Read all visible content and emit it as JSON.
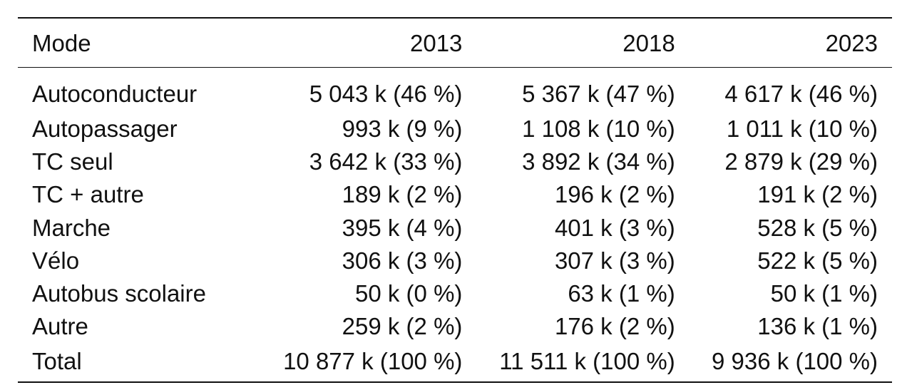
{
  "table": {
    "headers": [
      "Mode",
      "2013",
      "2018",
      "2023"
    ],
    "rows": [
      [
        "Autoconducteur",
        "5 043 k (46 %)",
        "5 367 k (47 %)",
        "4 617 k (46 %)"
      ],
      [
        "Autopassager",
        "993 k (9 %)",
        "1 108 k (10 %)",
        "1 011 k (10 %)"
      ],
      [
        "TC seul",
        "3 642 k (33 %)",
        "3 892 k (34 %)",
        "2 879 k (29 %)"
      ],
      [
        "TC + autre",
        "189 k (2 %)",
        "196 k (2 %)",
        "191 k (2 %)"
      ],
      [
        "Marche",
        "395 k (4 %)",
        "401 k (3 %)",
        "528 k (5 %)"
      ],
      [
        "Vélo",
        "306 k (3 %)",
        "307 k (3 %)",
        "522 k (5 %)"
      ],
      [
        "Autobus scolaire",
        "50 k (0 %)",
        "63 k (1 %)",
        "50 k (1 %)"
      ],
      [
        "Autre",
        "259 k (2 %)",
        "176 k (2 %)",
        "136 k (1 %)"
      ],
      [
        "Total",
        "10 877 k (100 %)",
        "11 511 k (100 %)",
        "9 936 k (100 %)"
      ]
    ]
  }
}
